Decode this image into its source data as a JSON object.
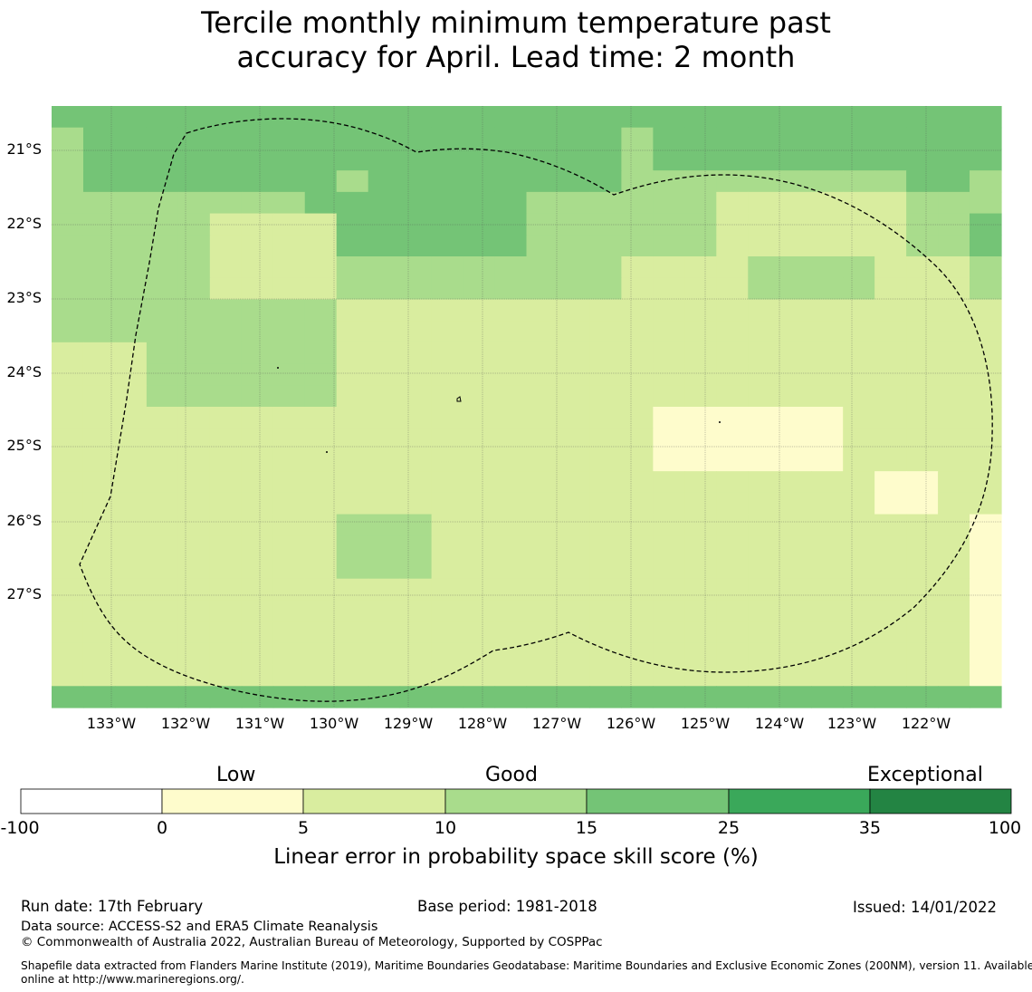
{
  "title": {
    "line1": "Tercile monthly minimum temperature past",
    "line2": "accuracy for April. Lead time: 2 month"
  },
  "map": {
    "lat_labels": [
      "21°S",
      "22°S",
      "23°S",
      "24°S",
      "25°S",
      "26°S",
      "27°S"
    ],
    "lon_labels": [
      "133°W",
      "132°W",
      "131°W",
      "130°W",
      "129°W",
      "128°W",
      "127°W",
      "126°W",
      "125°W",
      "124°W",
      "123°W",
      "122°W"
    ],
    "grid_category_rows": [
      "444444444444444444444444444444",
      "344444444444444444344444444444",
      "344444444444444444344444444444",
      "344444444344444444333333333443",
      "333333334444444333333222222333",
      "333332222444444333333222222334",
      "333332222444444333333222222334",
      "333332222333333333222233332223",
      "333332222333333333222233332223",
      "333333333222222222222222222222",
      "333333333222222222222222222222",
      "222333333222222222222222222222",
      "222333333222222222222222222222",
      "222333333222222222222222222222",
      "222222222222222222211111122222",
      "222222222222222222211111122222",
      "222222222222222222211111122222",
      "222222222222222222222222221122",
      "222222222222222222222222221122",
      "222222222333222222222222222221",
      "222222222333222222222222222221",
      "222222222333222222222222222221",
      "222222222222222222222222222221",
      "222222222222222222222222222221",
      "222222222222222222222222222221",
      "222222222222222222222222222221",
      "222222222222222222222222222221",
      "444444444444444444444444444444"
    ]
  },
  "colorbar": {
    "categories": [
      "Low",
      "Good",
      "Exceptional"
    ],
    "ticks": [
      "-100",
      "0",
      "5",
      "10",
      "15",
      "25",
      "35",
      "100"
    ],
    "colors": [
      "#ffffff",
      "#fefccc",
      "#d9ed9f",
      "#a9dc8c",
      "#74c476",
      "#3aa85a",
      "#238443"
    ],
    "label": "Linear error in probability space skill score (%)"
  },
  "footer": {
    "run_date": "Run date: 17th February",
    "base_period": "Base period: 1981-2018",
    "issued": "Issued: 14/01/2022",
    "data_source": "Data source: ACCESS-S2 and ERA5 Climate Reanalysis",
    "copyright": "© Commonwealth of Australia 2022, Australian Bureau of Meteorology, Supported by COSPPac",
    "shapefile_line1": "Shapefile data extracted from Flanders Marine Institute (2019), Maritime Boundaries Geodatabase: Maritime Boundaries and Exclusive Economic Zones (200NM), version 11. Available",
    "shapefile_line2": "online at http://www.marineregions.org/."
  }
}
